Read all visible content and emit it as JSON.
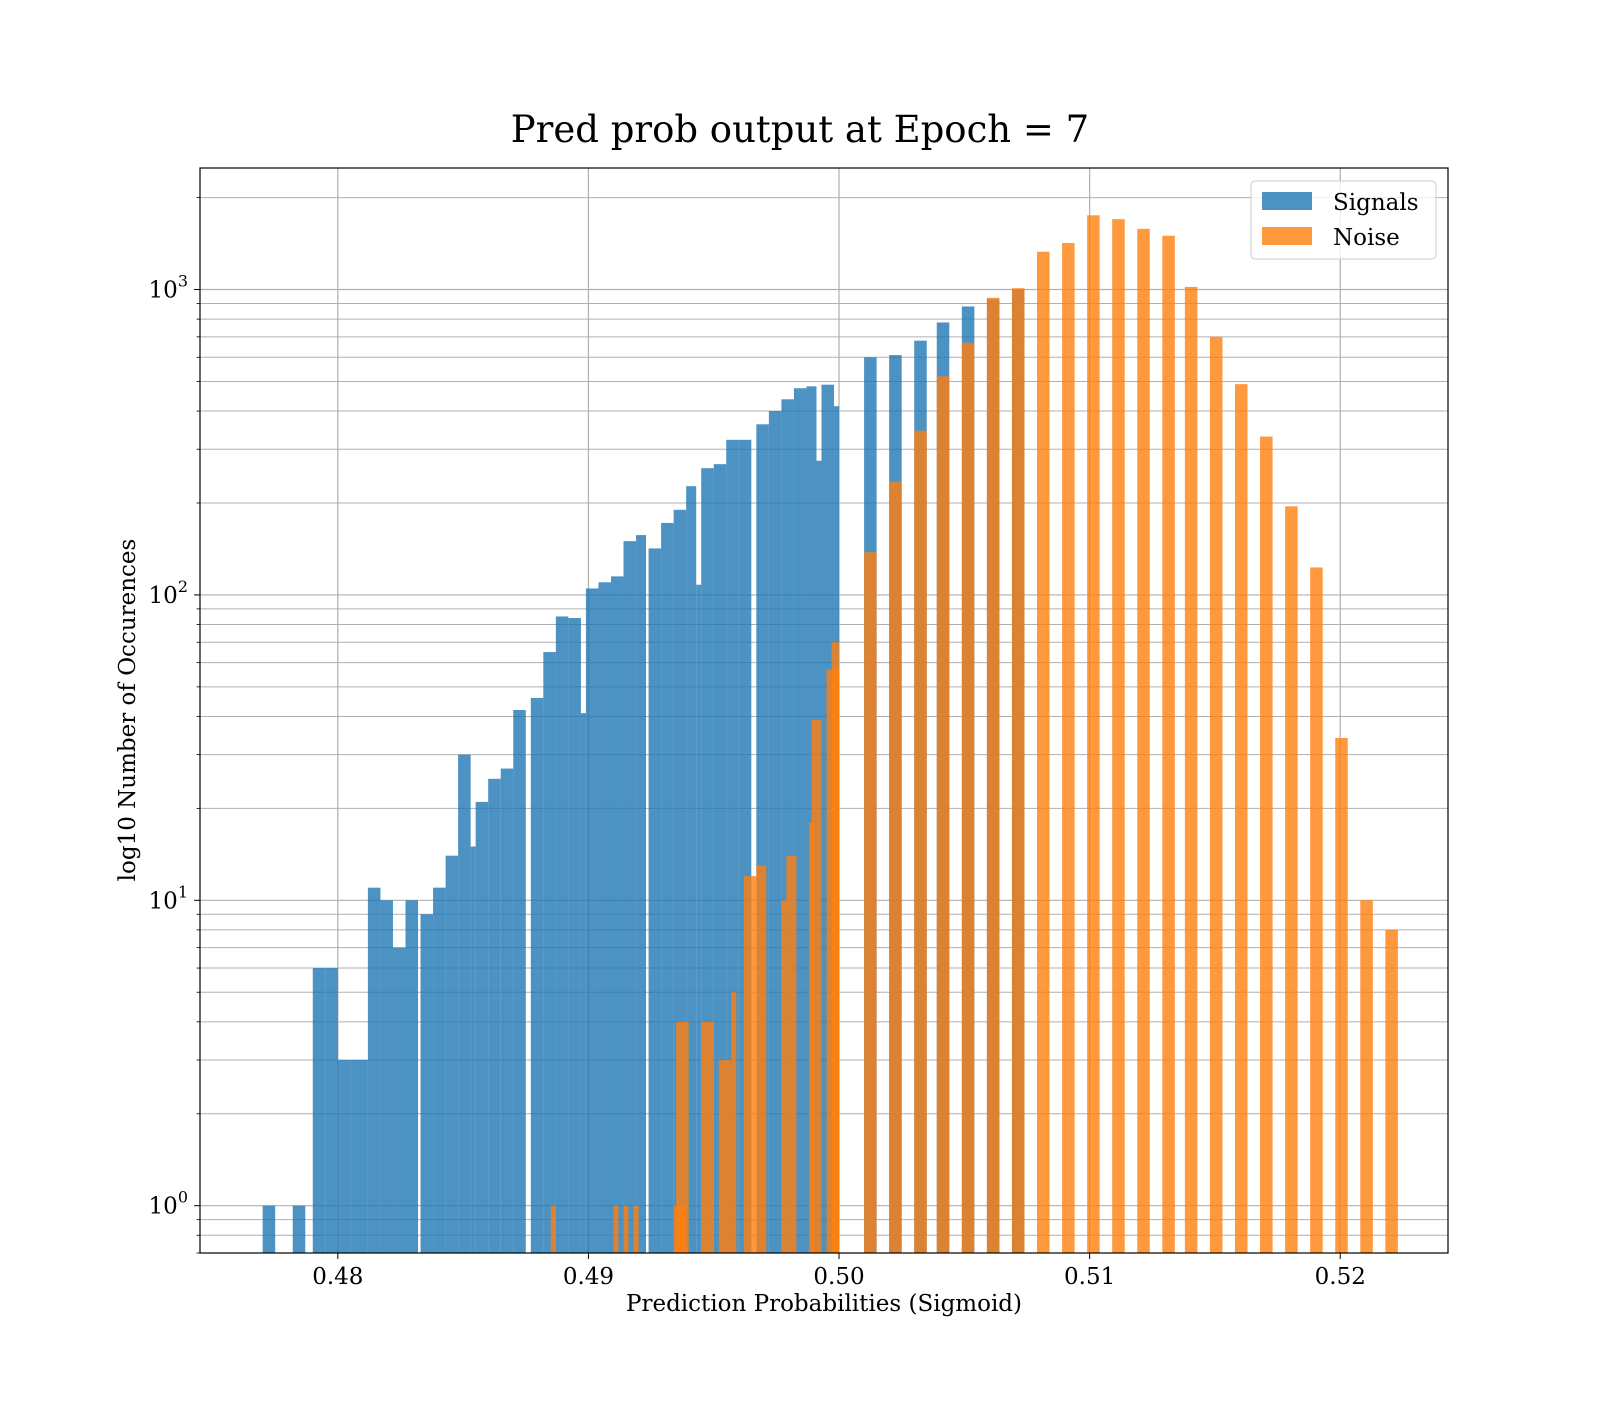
{
  "chart_data": {
    "type": "bar",
    "title": "Pred prob output at Epoch = 7",
    "xlabel": "Prediction Probabilities (Sigmoid)",
    "ylabel": "log10 Number of Occurences",
    "yscale": "log",
    "xlim": [
      0.4745,
      0.5243
    ],
    "ylim": [
      0.7,
      2500
    ],
    "grid": true,
    "legend_position": "top-right",
    "x_ticks": [
      {
        "value": 0.48,
        "label": "0.48"
      },
      {
        "value": 0.49,
        "label": "0.49"
      },
      {
        "value": 0.5,
        "label": "0.50"
      },
      {
        "value": 0.51,
        "label": "0.51"
      },
      {
        "value": 0.52,
        "label": "0.52"
      }
    ],
    "y_ticks": [
      {
        "value": 1,
        "base": "10",
        "exp": "0"
      },
      {
        "value": 10,
        "base": "10",
        "exp": "1"
      },
      {
        "value": 100,
        "base": "10",
        "exp": "2"
      },
      {
        "value": 1000,
        "base": "10",
        "exp": "3"
      }
    ],
    "series": [
      {
        "name": "Signals",
        "color": "#1f77b4",
        "opacity": 0.8,
        "bins": [
          [
            0.477,
            0.4775,
            1
          ],
          [
            0.4782,
            0.4787,
            1
          ],
          [
            0.479,
            0.4795,
            6
          ],
          [
            0.4795,
            0.48,
            6
          ],
          [
            0.48,
            0.4805,
            3
          ],
          [
            0.4805,
            0.4812,
            3
          ],
          [
            0.4812,
            0.4817,
            11
          ],
          [
            0.4817,
            0.4822,
            10
          ],
          [
            0.4822,
            0.4827,
            7
          ],
          [
            0.4827,
            0.4832,
            10
          ],
          [
            0.4833,
            0.4838,
            9
          ],
          [
            0.4838,
            0.4843,
            11
          ],
          [
            0.4843,
            0.4848,
            14
          ],
          [
            0.4848,
            0.4853,
            30
          ],
          [
            0.4853,
            0.4855,
            15
          ],
          [
            0.4855,
            0.486,
            21
          ],
          [
            0.486,
            0.4865,
            25
          ],
          [
            0.4865,
            0.487,
            27
          ],
          [
            0.487,
            0.4875,
            42
          ],
          [
            0.4877,
            0.4882,
            46
          ],
          [
            0.4882,
            0.4887,
            65
          ],
          [
            0.4887,
            0.4892,
            85
          ],
          [
            0.4892,
            0.4897,
            84
          ],
          [
            0.4897,
            0.4899,
            41
          ],
          [
            0.4899,
            0.4904,
            105
          ],
          [
            0.4904,
            0.4909,
            110
          ],
          [
            0.4909,
            0.4914,
            115
          ],
          [
            0.4914,
            0.4919,
            150
          ],
          [
            0.4919,
            0.4923,
            157
          ],
          [
            0.4924,
            0.4929,
            142
          ],
          [
            0.4929,
            0.4934,
            172
          ],
          [
            0.4934,
            0.4939,
            190
          ],
          [
            0.4939,
            0.4943,
            227
          ],
          [
            0.4943,
            0.4945,
            108
          ],
          [
            0.4945,
            0.495,
            260
          ],
          [
            0.495,
            0.4955,
            268
          ],
          [
            0.4955,
            0.496,
            322
          ],
          [
            0.496,
            0.4965,
            322
          ],
          [
            0.4967,
            0.4972,
            362
          ],
          [
            0.4972,
            0.4977,
            400
          ],
          [
            0.4977,
            0.4982,
            437
          ],
          [
            0.4982,
            0.4987,
            475
          ],
          [
            0.4987,
            0.4991,
            482
          ],
          [
            0.4991,
            0.4993,
            275
          ],
          [
            0.4993,
            0.4998,
            488
          ],
          [
            0.4998,
            0.5,
            415
          ],
          [
            0.501,
            0.5015,
            600
          ],
          [
            0.502,
            0.5025,
            610
          ],
          [
            0.503,
            0.5035,
            680
          ],
          [
            0.5039,
            0.5044,
            780
          ],
          [
            0.5049,
            0.5054,
            880
          ],
          [
            0.5059,
            0.5064,
            930
          ],
          [
            0.5069,
            0.5074,
            1000
          ]
        ]
      },
      {
        "name": "Noise",
        "color": "#ff7f0e",
        "opacity": 0.8,
        "bins": [
          [
            0.4885,
            0.4887,
            1
          ],
          [
            0.491,
            0.4912,
            1
          ],
          [
            0.4914,
            0.4916,
            1
          ],
          [
            0.4918,
            0.492,
            1
          ],
          [
            0.4934,
            0.4939,
            1
          ],
          [
            0.4935,
            0.494,
            4
          ],
          [
            0.4945,
            0.495,
            4
          ],
          [
            0.4952,
            0.4957,
            3
          ],
          [
            0.4957,
            0.4959,
            5
          ],
          [
            0.4962,
            0.4967,
            12
          ],
          [
            0.4967,
            0.4971,
            13
          ],
          [
            0.4977,
            0.4979,
            10
          ],
          [
            0.4979,
            0.4983,
            14
          ],
          [
            0.4988,
            0.499,
            18
          ],
          [
            0.4989,
            0.4993,
            39
          ],
          [
            0.4995,
            0.5,
            57
          ],
          [
            0.4997,
            0.5,
            70
          ],
          [
            0.501,
            0.5015,
            138
          ],
          [
            0.502,
            0.5025,
            235
          ],
          [
            0.503,
            0.5035,
            345
          ],
          [
            0.5039,
            0.5044,
            520
          ],
          [
            0.5049,
            0.5054,
            670
          ],
          [
            0.5059,
            0.5064,
            940
          ],
          [
            0.5069,
            0.5074,
            1010
          ],
          [
            0.5079,
            0.5084,
            1330
          ],
          [
            0.5089,
            0.5094,
            1420
          ],
          [
            0.5099,
            0.5104,
            1750
          ],
          [
            0.5109,
            0.5114,
            1700
          ],
          [
            0.5119,
            0.5124,
            1580
          ],
          [
            0.5129,
            0.5134,
            1500
          ],
          [
            0.5138,
            0.5143,
            1020
          ],
          [
            0.5148,
            0.5153,
            700
          ],
          [
            0.5158,
            0.5163,
            490
          ],
          [
            0.5168,
            0.5173,
            330
          ],
          [
            0.5178,
            0.5183,
            195
          ],
          [
            0.5188,
            0.5193,
            123
          ],
          [
            0.5198,
            0.5203,
            34
          ],
          [
            0.5208,
            0.5213,
            10
          ],
          [
            0.5218,
            0.5223,
            8
          ]
        ]
      }
    ]
  }
}
